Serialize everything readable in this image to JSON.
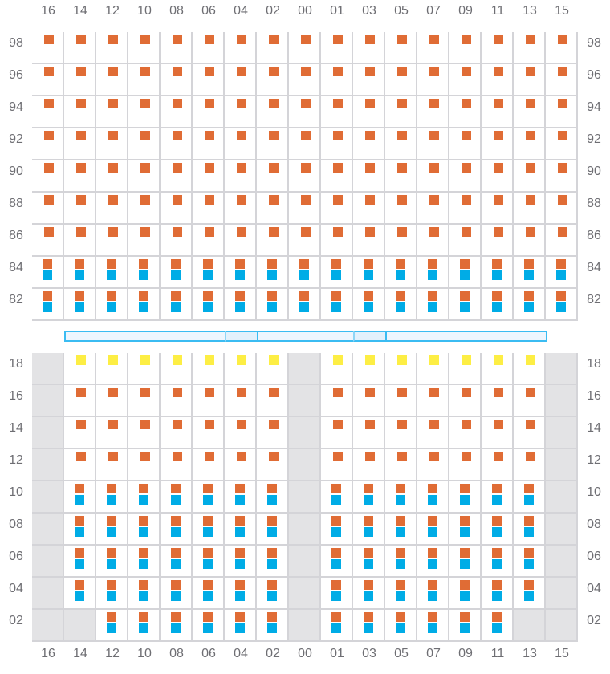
{
  "columns": [
    "16",
    "14",
    "12",
    "10",
    "08",
    "06",
    "04",
    "02",
    "00",
    "01",
    "03",
    "05",
    "07",
    "09",
    "11",
    "13",
    "15"
  ],
  "colors": {
    "orange": "#e06c35",
    "blue": "#00ace6",
    "yellow": "#fdee44",
    "unavailable": "#e3e3e5",
    "accent": "#3bbcf2"
  },
  "legend_codes": {
    "O": "orange",
    "OB": "orange+blue",
    "Y": "yellow",
    "X": "unavailable",
    "-": "empty"
  },
  "top_section": {
    "rows": [
      {
        "label": "98",
        "cells": [
          "O",
          "O",
          "O",
          "O",
          "O",
          "O",
          "O",
          "O",
          "O",
          "O",
          "O",
          "O",
          "O",
          "O",
          "O",
          "O",
          "O"
        ]
      },
      {
        "label": "96",
        "cells": [
          "O",
          "O",
          "O",
          "O",
          "O",
          "O",
          "O",
          "O",
          "O",
          "O",
          "O",
          "O",
          "O",
          "O",
          "O",
          "O",
          "O"
        ]
      },
      {
        "label": "94",
        "cells": [
          "O",
          "O",
          "O",
          "O",
          "O",
          "O",
          "O",
          "O",
          "O",
          "O",
          "O",
          "O",
          "O",
          "O",
          "O",
          "O",
          "O"
        ]
      },
      {
        "label": "92",
        "cells": [
          "O",
          "O",
          "O",
          "O",
          "O",
          "O",
          "O",
          "O",
          "O",
          "O",
          "O",
          "O",
          "O",
          "O",
          "O",
          "O",
          "O"
        ]
      },
      {
        "label": "90",
        "cells": [
          "O",
          "O",
          "O",
          "O",
          "O",
          "O",
          "O",
          "O",
          "O",
          "O",
          "O",
          "O",
          "O",
          "O",
          "O",
          "O",
          "O"
        ]
      },
      {
        "label": "88",
        "cells": [
          "O",
          "O",
          "O",
          "O",
          "O",
          "O",
          "O",
          "O",
          "O",
          "O",
          "O",
          "O",
          "O",
          "O",
          "O",
          "O",
          "O"
        ]
      },
      {
        "label": "86",
        "cells": [
          "O",
          "O",
          "O",
          "O",
          "O",
          "O",
          "O",
          "O",
          "O",
          "O",
          "O",
          "O",
          "O",
          "O",
          "O",
          "O",
          "O"
        ]
      },
      {
        "label": "84",
        "cells": [
          "OB",
          "OB",
          "OB",
          "OB",
          "OB",
          "OB",
          "OB",
          "OB",
          "OB",
          "OB",
          "OB",
          "OB",
          "OB",
          "OB",
          "OB",
          "OB",
          "OB"
        ]
      },
      {
        "label": "82",
        "cells": [
          "OB",
          "OB",
          "OB",
          "OB",
          "OB",
          "OB",
          "OB",
          "OB",
          "OB",
          "OB",
          "OB",
          "OB",
          "OB",
          "OB",
          "OB",
          "OB",
          "OB"
        ]
      }
    ]
  },
  "divider_bar": {
    "segments": [
      {
        "from": "14",
        "to": "06",
        "style": "light"
      },
      {
        "from": "04",
        "to": "04",
        "style": "dark"
      },
      {
        "from": "02",
        "to": "01",
        "style": "light"
      },
      {
        "from": "03",
        "to": "03",
        "style": "dark"
      },
      {
        "from": "05",
        "to": "13",
        "style": "light"
      }
    ]
  },
  "bottom_section": {
    "rows": [
      {
        "label": "18",
        "cells": [
          "X",
          "Y",
          "Y",
          "Y",
          "Y",
          "Y",
          "Y",
          "Y",
          "X",
          "Y",
          "Y",
          "Y",
          "Y",
          "Y",
          "Y",
          "Y",
          "X"
        ]
      },
      {
        "label": "16",
        "cells": [
          "X",
          "O",
          "O",
          "O",
          "O",
          "O",
          "O",
          "O",
          "X",
          "O",
          "O",
          "O",
          "O",
          "O",
          "O",
          "O",
          "X"
        ]
      },
      {
        "label": "14",
        "cells": [
          "X",
          "O",
          "O",
          "O",
          "O",
          "O",
          "O",
          "O",
          "X",
          "O",
          "O",
          "O",
          "O",
          "O",
          "O",
          "O",
          "X"
        ]
      },
      {
        "label": "12",
        "cells": [
          "X",
          "O",
          "O",
          "O",
          "O",
          "O",
          "O",
          "O",
          "X",
          "O",
          "O",
          "O",
          "O",
          "O",
          "O",
          "O",
          "X"
        ]
      },
      {
        "label": "10",
        "cells": [
          "X",
          "OB",
          "OB",
          "OB",
          "OB",
          "OB",
          "OB",
          "OB",
          "X",
          "OB",
          "OB",
          "OB",
          "OB",
          "OB",
          "OB",
          "OB",
          "X"
        ]
      },
      {
        "label": "08",
        "cells": [
          "X",
          "OB",
          "OB",
          "OB",
          "OB",
          "OB",
          "OB",
          "OB",
          "X",
          "OB",
          "OB",
          "OB",
          "OB",
          "OB",
          "OB",
          "OB",
          "X"
        ]
      },
      {
        "label": "06",
        "cells": [
          "X",
          "OB",
          "OB",
          "OB",
          "OB",
          "OB",
          "OB",
          "OB",
          "X",
          "OB",
          "OB",
          "OB",
          "OB",
          "OB",
          "OB",
          "OB",
          "X"
        ]
      },
      {
        "label": "04",
        "cells": [
          "X",
          "OB",
          "OB",
          "OB",
          "OB",
          "OB",
          "OB",
          "OB",
          "X",
          "OB",
          "OB",
          "OB",
          "OB",
          "OB",
          "OB",
          "OB",
          "X"
        ]
      },
      {
        "label": "02",
        "cells": [
          "X",
          "X",
          "OB",
          "OB",
          "OB",
          "OB",
          "OB",
          "OB",
          "X",
          "OB",
          "OB",
          "OB",
          "OB",
          "OB",
          "OB",
          "X",
          "X"
        ]
      }
    ]
  }
}
